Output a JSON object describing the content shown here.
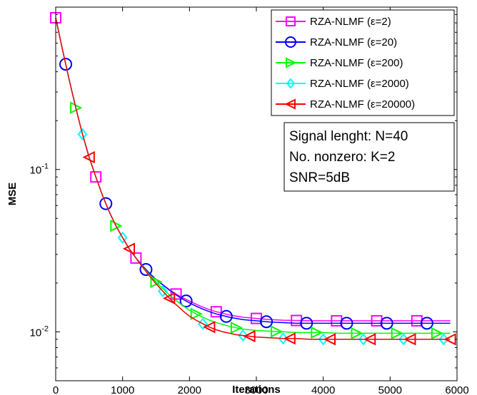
{
  "chart_data": {
    "type": "line",
    "title": "",
    "xlabel": "Iterations",
    "ylabel": "MSE",
    "xlim": [
      0,
      6000
    ],
    "ylim": [
      0.005,
      1
    ],
    "yscale": "log",
    "grid": false,
    "legend_position": "top-right",
    "x_ticks": [
      0,
      1000,
      2000,
      3000,
      4000,
      5000,
      6000
    ],
    "x_tick_labels": [
      "0",
      "1000",
      "2000",
      "3000",
      "4000",
      "5000",
      "6000"
    ],
    "y_ticks": [
      0.01,
      0.1
    ],
    "y_tick_labels": [
      {
        "base": "10",
        "exp": "-2"
      },
      {
        "base": "10",
        "exp": "-1"
      }
    ],
    "x": [
      0,
      100,
      200,
      300,
      400,
      500,
      600,
      700,
      800,
      900,
      1000,
      1100,
      1200,
      1300,
      1400,
      1500,
      1600,
      1700,
      1800,
      1900,
      2000,
      2100,
      2200,
      2300,
      2400,
      2500,
      2600,
      2700,
      2800,
      2900,
      3000,
      3200,
      3400,
      3600,
      3800,
      4000,
      4200,
      4400,
      4600,
      4800,
      5000,
      5200,
      5400,
      5600,
      5800,
      5900
    ],
    "series": [
      {
        "name": "RZA-NLMF (ε=2)",
        "color": "#ff00ff",
        "marker": "square",
        "marker_x": [
          0,
          600,
          1200,
          1800,
          2400,
          3000,
          3600,
          4200,
          4800,
          5400
        ],
        "values": [
          0.86,
          0.55,
          0.36,
          0.24,
          0.165,
          0.119,
          0.09,
          0.069,
          0.055,
          0.045,
          0.038,
          0.0325,
          0.0285,
          0.0255,
          0.023,
          0.021,
          0.0195,
          0.0182,
          0.0171,
          0.0162,
          0.0155,
          0.0148,
          0.0142,
          0.0137,
          0.0133,
          0.013,
          0.0127,
          0.0125,
          0.0123,
          0.0122,
          0.0121,
          0.0119,
          0.0118,
          0.01175,
          0.0117,
          0.0117,
          0.0117,
          0.0117,
          0.0117,
          0.0117,
          0.0117,
          0.0117,
          0.0117,
          0.0117,
          0.0117,
          0.0117
        ]
      },
      {
        "name": "RZA-NLMF (ε=20)",
        "color": "#0000ff",
        "marker": "circle",
        "marker_x": [
          150,
          750,
          1350,
          1950,
          2550,
          3150,
          3750,
          4350,
          4950,
          5550
        ],
        "values": [
          0.86,
          0.55,
          0.36,
          0.24,
          0.165,
          0.119,
          0.09,
          0.069,
          0.055,
          0.045,
          0.038,
          0.0325,
          0.0285,
          0.0255,
          0.023,
          0.021,
          0.0195,
          0.0181,
          0.0169,
          0.0159,
          0.0151,
          0.0144,
          0.0138,
          0.0133,
          0.0129,
          0.0126,
          0.0123,
          0.0121,
          0.0119,
          0.0118,
          0.0117,
          0.0115,
          0.0114,
          0.0113,
          0.0113,
          0.0113,
          0.0113,
          0.0113,
          0.0113,
          0.0113,
          0.0113,
          0.0113,
          0.0113,
          0.0113,
          0.0113,
          0.0113
        ]
      },
      {
        "name": "RZA-NLMF (ε=200)",
        "color": "#00ff00",
        "marker": "triangle-right",
        "marker_x": [
          300,
          900,
          1500,
          2100,
          2700,
          3300,
          3900,
          4500,
          5100,
          5700
        ],
        "values": [
          0.86,
          0.55,
          0.36,
          0.24,
          0.165,
          0.119,
          0.09,
          0.069,
          0.055,
          0.045,
          0.038,
          0.0325,
          0.0285,
          0.0252,
          0.0225,
          0.0203,
          0.0185,
          0.0169,
          0.0156,
          0.0145,
          0.0136,
          0.0129,
          0.0123,
          0.0118,
          0.0114,
          0.0111,
          0.0108,
          0.0106,
          0.0104,
          0.0103,
          0.0102,
          0.0101,
          0.01,
          0.0099,
          0.0099,
          0.0099,
          0.0098,
          0.0098,
          0.0098,
          0.0098,
          0.0098,
          0.0098,
          0.0098,
          0.0098,
          0.0098,
          0.0098
        ]
      },
      {
        "name": "RZA-NLMF (ε=2000)",
        "color": "#00ffff",
        "marker": "diamond",
        "marker_x": [
          400,
          1000,
          1600,
          2200,
          2800,
          3400,
          4000,
          4600,
          5200,
          5800
        ],
        "values": [
          0.86,
          0.55,
          0.36,
          0.24,
          0.165,
          0.119,
          0.09,
          0.069,
          0.055,
          0.045,
          0.038,
          0.0325,
          0.0285,
          0.025,
          0.0222,
          0.0198,
          0.0178,
          0.0161,
          0.0147,
          0.0135,
          0.0125,
          0.0118,
          0.0112,
          0.0107,
          0.0103,
          0.01,
          0.0098,
          0.0096,
          0.0095,
          0.0094,
          0.0093,
          0.0092,
          0.0091,
          0.0091,
          0.009,
          0.009,
          0.009,
          0.009,
          0.009,
          0.009,
          0.009,
          0.009,
          0.009,
          0.009,
          0.009,
          0.009
        ]
      },
      {
        "name": "RZA-NLMF (ε=20000)",
        "color": "#ff0000",
        "marker": "triangle-left",
        "marker_x": [
          500,
          1100,
          1700,
          2300,
          2900,
          3500,
          4100,
          4700,
          5300,
          5900
        ],
        "values": [
          0.86,
          0.55,
          0.36,
          0.24,
          0.165,
          0.119,
          0.09,
          0.069,
          0.055,
          0.045,
          0.038,
          0.0325,
          0.0285,
          0.025,
          0.0222,
          0.0198,
          0.0178,
          0.0161,
          0.0147,
          0.0135,
          0.0125,
          0.0118,
          0.0112,
          0.0107,
          0.0103,
          0.01,
          0.0098,
          0.0096,
          0.0095,
          0.0094,
          0.0093,
          0.0092,
          0.0091,
          0.0091,
          0.009,
          0.009,
          0.009,
          0.009,
          0.009,
          0.009,
          0.009,
          0.009,
          0.009,
          0.009,
          0.009,
          0.009
        ]
      }
    ],
    "annotation": {
      "lines": [
        "Signal lenght: N=40",
        "No. nonzero: K=2",
        "SNR=5dB"
      ]
    }
  }
}
